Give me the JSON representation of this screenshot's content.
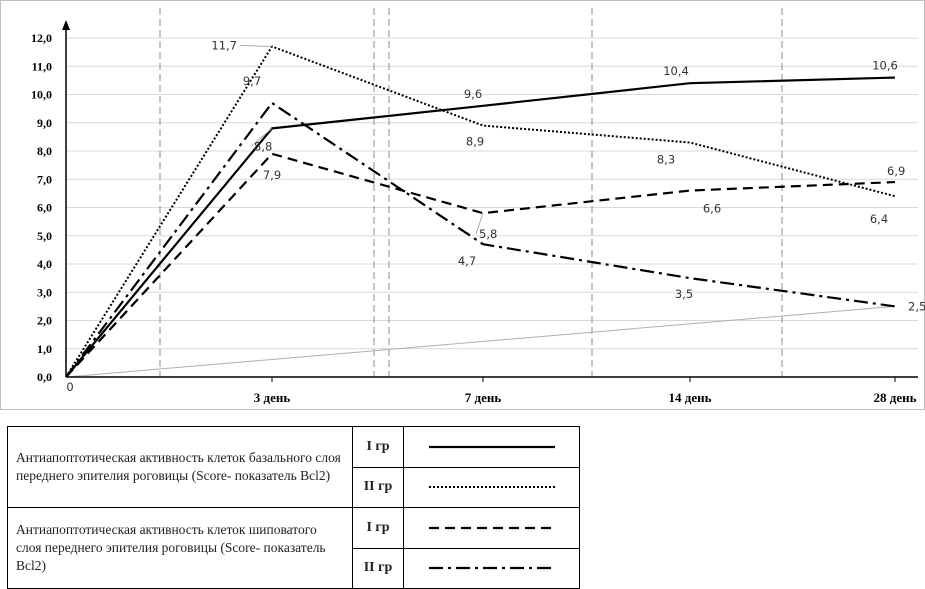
{
  "chart_data": {
    "type": "line",
    "x_ticks": [
      "3 день",
      "7 день",
      "14 день",
      "28 день"
    ],
    "x_origin_label": "0",
    "y_ticks": [
      "0,0",
      "1,0",
      "2,0",
      "3,0",
      "4,0",
      "5,0",
      "6,0",
      "7,0",
      "8,0",
      "9,0",
      "10,0",
      "11,0",
      "12,0"
    ],
    "ylim": [
      0,
      12
    ],
    "x_points": [
      "0",
      "3 день",
      "7 день",
      "14 день",
      "28 день"
    ],
    "series": [
      {
        "key": "s1",
        "values": [
          0,
          8.8,
          9.6,
          10.4,
          10.6
        ],
        "labels": [
          "",
          "8,8",
          "9,6",
          "10,4",
          "10,6"
        ],
        "style": "solid"
      },
      {
        "key": "s2",
        "values": [
          0,
          11.7,
          8.9,
          8.3,
          6.4
        ],
        "labels": [
          "",
          "11,7",
          "8,9",
          "8,3",
          "6,4"
        ],
        "style": "dotted"
      },
      {
        "key": "s3",
        "values": [
          0,
          7.9,
          5.8,
          6.6,
          6.9
        ],
        "labels": [
          "",
          "7,9",
          "5,8",
          "6,6",
          "6,9"
        ],
        "style": "dashed"
      },
      {
        "key": "s4",
        "values": [
          0,
          9.7,
          4.7,
          3.5,
          2.5
        ],
        "labels": [
          "",
          "9,7",
          "4,7",
          "3,5",
          "2,5"
        ],
        "style": "dashdot"
      }
    ],
    "trend_line": {
      "from": 0,
      "to": 2.5
    },
    "grid": "horizontal",
    "colors": {
      "series": "#000000",
      "grid": "#d9d9d9",
      "trend": "#b0b0b0",
      "separators": "#8c8c8c"
    }
  },
  "legend": {
    "rows": [
      {
        "description": "Антиапоптотическая активность клеток базального слоя  переднего эпителия роговицы (Score- показатель Bcl2)",
        "groups": [
          "I гр",
          "II гр"
        ]
      },
      {
        "description": "Антиапоптотическая активность клеток шиповатого слоя переднего эпителия роговицы (Score- показатель Bcl2)",
        "groups": [
          "I гр",
          "II гр"
        ]
      }
    ]
  }
}
